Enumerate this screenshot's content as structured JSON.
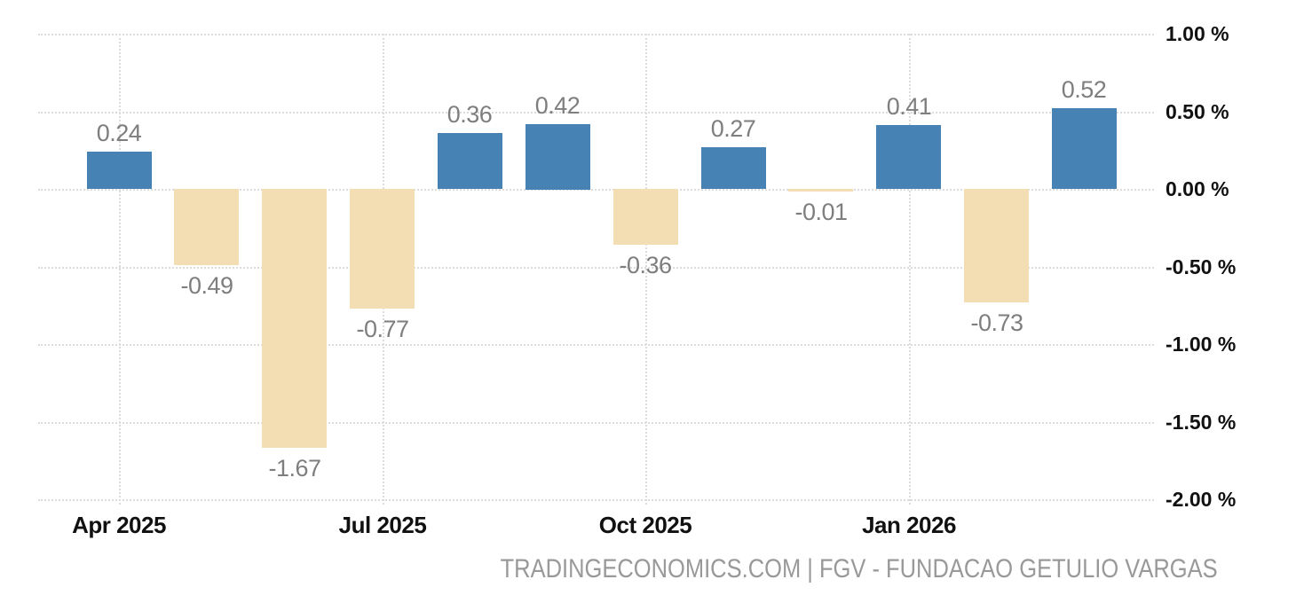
{
  "chart_data": {
    "type": "bar",
    "values": [
      0.24,
      -0.49,
      -1.67,
      -0.77,
      0.36,
      0.42,
      -0.36,
      0.27,
      -0.01,
      0.41,
      -0.73,
      0.52
    ],
    "bar_labels": [
      "0.24",
      "-0.49",
      "-1.67",
      "-0.77",
      "0.36",
      "0.42",
      "-0.36",
      "0.27",
      "-0.01",
      "0.41",
      "-0.73",
      "0.52"
    ],
    "x_ticks": [
      {
        "label": "Apr 2025",
        "bar_index": 0
      },
      {
        "label": "Jul 2025",
        "bar_index": 3
      },
      {
        "label": "Oct 2025",
        "bar_index": 6
      },
      {
        "label": "Jan 2026",
        "bar_index": 9
      }
    ],
    "y_ticks": [
      {
        "label": "1.00 %",
        "value": 1.0
      },
      {
        "label": "0.50 %",
        "value": 0.5
      },
      {
        "label": "0.00 %",
        "value": 0.0
      },
      {
        "label": "-0.50 %",
        "value": -0.5
      },
      {
        "label": "-1.00 %",
        "value": -1.0
      },
      {
        "label": "-1.50 %",
        "value": -1.5
      },
      {
        "label": "-2.00 %",
        "value": -2.0
      }
    ],
    "ylim": [
      -2.0,
      1.0
    ],
    "grid": "dotted",
    "legend": "none",
    "attribution": "TRADINGECONOMICS.COM | FGV - FUNDACAO GETULIO VARGAS",
    "colors": {
      "positive_bar": "#4682b4",
      "negative_bar": "#f3deb3",
      "grid": "#dcdcdc",
      "axis_text": "#111111",
      "value_text": "#7e7e7e",
      "attribution_text": "#999999"
    }
  }
}
